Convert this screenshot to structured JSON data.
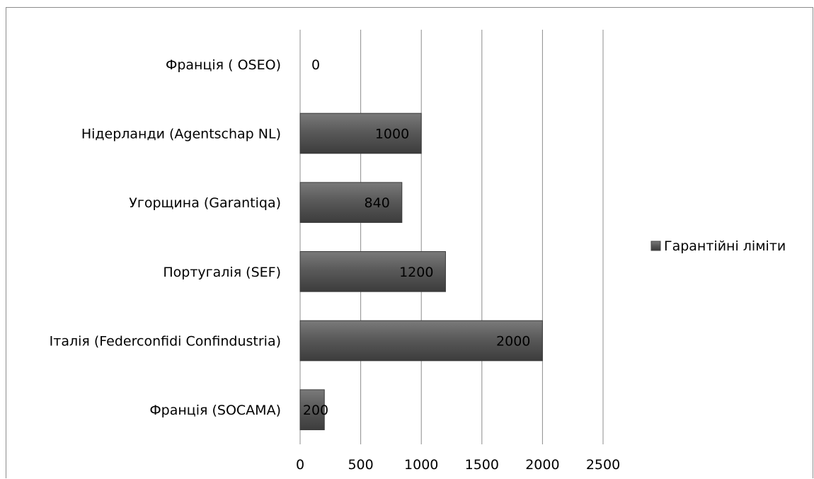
{
  "chart_data": {
    "type": "bar",
    "orientation": "horizontal",
    "categories": [
      "Франція (SOCAMA)",
      "Італія (Federconfidi Confindustria)",
      "Португалія (SEF)",
      "Угорщина (Garantiqa)",
      "Нідерланди (Agentschap NL)",
      "Франція ( OSEO)"
    ],
    "series": [
      {
        "name": "Гарантійні ліміти",
        "values": [
          200,
          2000,
          1200,
          840,
          1000,
          0
        ],
        "color": "#595959"
      }
    ],
    "xlim": [
      0,
      2500
    ],
    "xticks": [
      0,
      500,
      1000,
      1500,
      2000,
      2500
    ],
    "title": "",
    "xlabel": "",
    "ylabel": "",
    "grid": "vertical",
    "legend_position": "right",
    "data_labels": true
  }
}
